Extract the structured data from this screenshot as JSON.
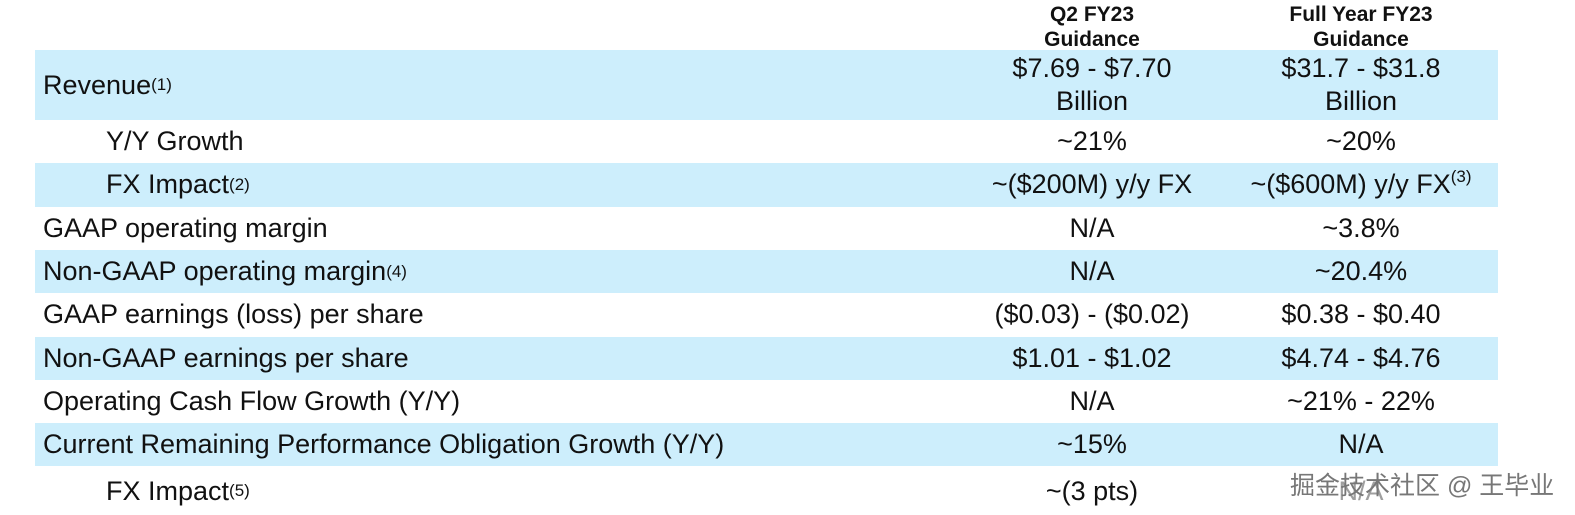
{
  "header": {
    "columns": [
      [
        "Q2 FY23",
        "Guidance"
      ],
      [
        "Full Year FY23",
        "Guidance"
      ]
    ]
  },
  "rows": [
    {
      "label": "Revenue",
      "note": "(1)",
      "q2": [
        "$7.69 - $7.70",
        "Billion"
      ],
      "fy": [
        "$31.7 - $31.8",
        "Billion"
      ]
    },
    {
      "label": "Y/Y Growth",
      "indent": true,
      "q2": [
        "~21%"
      ],
      "fy": [
        "~20%"
      ]
    },
    {
      "label": "FX Impact",
      "note": "(2)",
      "indent": true,
      "q2": [
        "~($200M) y/y FX"
      ],
      "fy": [
        "~($600M) y/y FX"
      ],
      "fy_note": "(3)"
    },
    {
      "label": "GAAP operating margin",
      "q2": [
        "N/A"
      ],
      "fy": [
        "~3.8%"
      ]
    },
    {
      "label": "Non-GAAP operating margin",
      "note": "(4)",
      "q2": [
        "N/A"
      ],
      "fy": [
        "~20.4%"
      ]
    },
    {
      "label": "GAAP earnings (loss) per share",
      "q2": [
        "($0.03) - ($0.02)"
      ],
      "fy": [
        "$0.38 - $0.40"
      ]
    },
    {
      "label": "Non-GAAP earnings per share",
      "q2": [
        "$1.01 - $1.02"
      ],
      "fy": [
        "$4.74 - $4.76"
      ]
    },
    {
      "label": "Operating Cash Flow Growth (Y/Y)",
      "q2": [
        "N/A"
      ],
      "fy": [
        "~21% - 22%"
      ]
    },
    {
      "label": "Current Remaining Performance Obligation Growth (Y/Y)",
      "q2": [
        "~15%"
      ],
      "fy": [
        "N/A"
      ]
    },
    {
      "label": "FX Impact",
      "note": "(5)",
      "indent": true,
      "q2": [
        "~(3 pts)"
      ],
      "fy": [
        "N/A"
      ]
    }
  ],
  "watermark": "掘金技术社区 @ 王毕业"
}
